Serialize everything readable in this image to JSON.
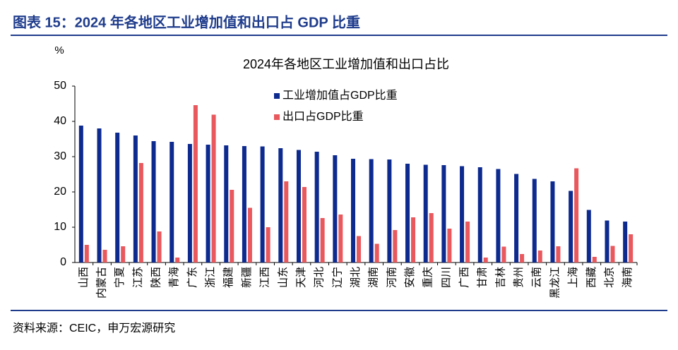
{
  "header": {
    "title": "图表 15：2024 年各地区工业增加值和出口占 GDP 比重"
  },
  "chart_data": {
    "type": "bar",
    "title": "2024年各地区工业增加值和出口占比",
    "y_label": "%",
    "categories": [
      "山西",
      "内蒙古",
      "宁夏",
      "江苏",
      "陕西",
      "青海",
      "广东",
      "浙江",
      "福建",
      "新疆",
      "江西",
      "山东",
      "天津",
      "河北",
      "辽宁",
      "湖北",
      "湖南",
      "河南",
      "安徽",
      "重庆",
      "四川",
      "广西",
      "甘肃",
      "吉林",
      "贵州",
      "云南",
      "黑龙江",
      "上海",
      "西藏",
      "北京",
      "海南"
    ],
    "series": [
      {
        "name": "工业增加值占GDP比重",
        "color": "#0d2a8f",
        "values": [
          38.8,
          38.0,
          36.8,
          36.0,
          34.4,
          34.2,
          33.6,
          33.4,
          33.2,
          33.0,
          32.9,
          32.4,
          31.9,
          31.4,
          30.4,
          29.4,
          29.3,
          29.2,
          28.0,
          27.7,
          27.6,
          27.3,
          27.0,
          26.5,
          25.1,
          23.7,
          23.0,
          20.3,
          14.9,
          11.9,
          11.6
        ]
      },
      {
        "name": "出口占GDP比重",
        "color": "#e8585d",
        "values": [
          5.0,
          3.6,
          4.6,
          28.2,
          8.8,
          1.4,
          44.6,
          41.9,
          20.6,
          15.5,
          10.0,
          23.0,
          21.4,
          12.6,
          13.6,
          7.5,
          5.3,
          9.2,
          12.8,
          14.0,
          9.6,
          11.6,
          1.4,
          4.5,
          2.4,
          3.4,
          4.6,
          26.7,
          1.6,
          4.7,
          8.0
        ]
      }
    ],
    "ylim": [
      0,
      50
    ],
    "yticks": [
      0,
      10,
      20,
      30,
      40,
      50
    ],
    "grid": false
  },
  "footer": {
    "source": "资料来源：CEIC，申万宏源研究"
  }
}
